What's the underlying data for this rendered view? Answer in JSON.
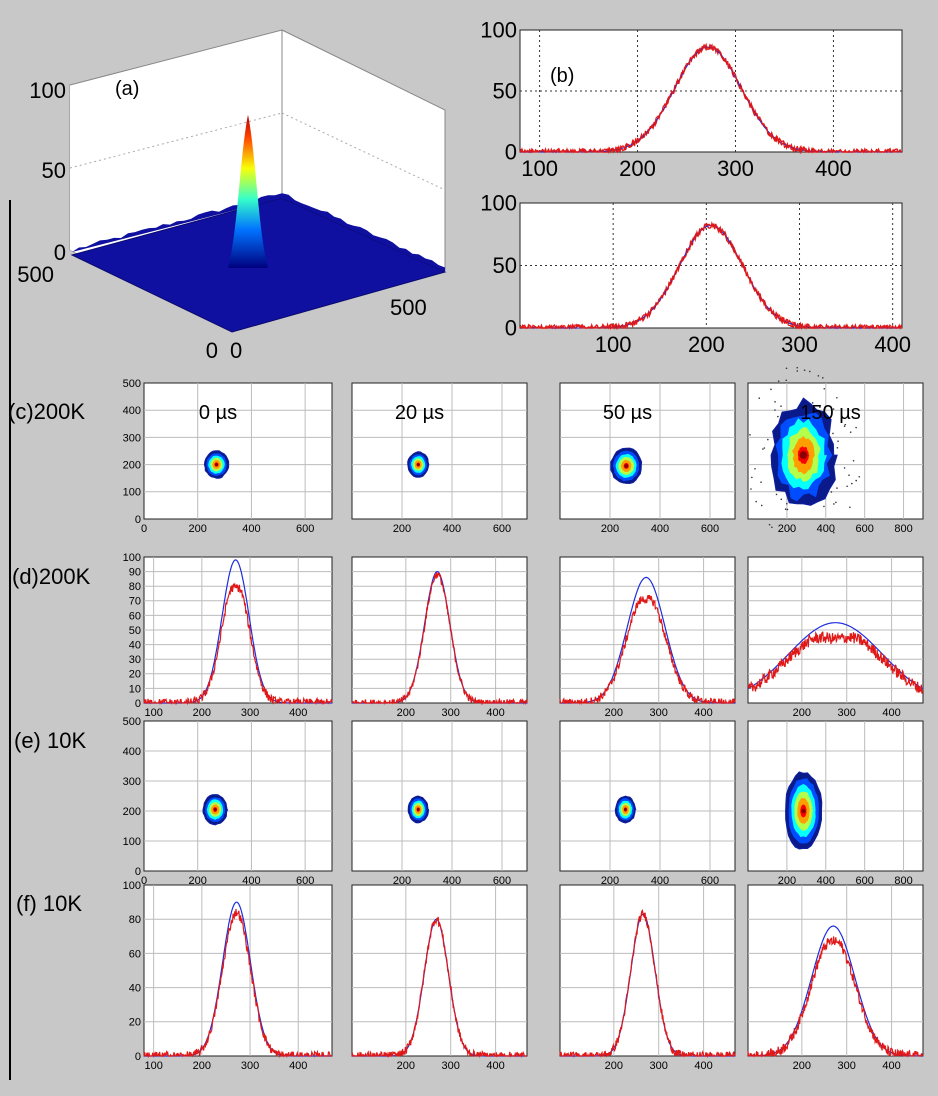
{
  "figure": {
    "row_labels": {
      "c": "(c)200K",
      "d": "(d)200K",
      "e": "(e) 10K",
      "f": "(f) 10K"
    },
    "colors": {
      "background": "#c8c8c8",
      "measured": "#e01818",
      "fit": "#1e2ee0",
      "grid": "#bcbcbc",
      "surface": "#1010a0"
    }
  },
  "chart_data": [
    {
      "id": "a",
      "type": "surface3d",
      "panel_label": "(a)",
      "zticks": [
        "100",
        "50",
        "0"
      ],
      "xticks": [
        "0",
        "500"
      ],
      "yticks": [
        "500",
        "0"
      ],
      "peak": 82
    },
    {
      "id": "b1",
      "type": "line",
      "panel_label": "(b)",
      "xlim": [
        80,
        470
      ],
      "ylim": [
        0,
        100
      ],
      "xticks": [
        100,
        200,
        300,
        400
      ],
      "yticks": [
        0,
        50,
        100
      ],
      "series": [
        {
          "role": "measured",
          "center": 272,
          "sigma": 34,
          "amp": 86,
          "noise": 2.5
        },
        {
          "role": "fit",
          "center": 272,
          "sigma": 34,
          "amp": 86
        }
      ]
    },
    {
      "id": "b2",
      "type": "line",
      "panel_label": "",
      "xlim": [
        0,
        410
      ],
      "ylim": [
        0,
        100
      ],
      "xticks": [
        100,
        200,
        300,
        400
      ],
      "yticks": [
        0,
        50,
        100
      ],
      "series": [
        {
          "role": "measured",
          "center": 205,
          "sigma": 34,
          "amp": 82,
          "noise": 2.5
        },
        {
          "role": "fit",
          "center": 205,
          "sigma": 34,
          "amp": 82
        }
      ]
    },
    {
      "id": "c",
      "type": "heatmap_row",
      "ylim": [
        0,
        500
      ],
      "yticks": [
        0,
        100,
        200,
        300,
        400,
        500
      ],
      "panels": [
        {
          "time": "0 µs",
          "xlim": [
            0,
            700
          ],
          "xticks": [
            0,
            200,
            400,
            600
          ],
          "cx": 270,
          "cy": 200,
          "rx": 45,
          "ry": 50
        },
        {
          "time": "20 µs",
          "xlim": [
            0,
            700
          ],
          "xticks": [
            200,
            400,
            600
          ],
          "cx": 265,
          "cy": 200,
          "rx": 42,
          "ry": 46
        },
        {
          "time": "50 µs",
          "xlim": [
            0,
            700
          ],
          "xticks": [
            200,
            400,
            600
          ],
          "cx": 265,
          "cy": 195,
          "rx": 62,
          "ry": 66
        },
        {
          "time": "150 µs",
          "xlim": [
            0,
            900
          ],
          "xticks": [
            200,
            400,
            600,
            800
          ],
          "cx": 285,
          "cy": 235,
          "rx": 165,
          "ry": 190
        }
      ]
    },
    {
      "id": "d",
      "type": "line_row",
      "ylim": [
        0,
        100
      ],
      "yticks": [
        0,
        10,
        20,
        30,
        40,
        50,
        60,
        70,
        80,
        90,
        100
      ],
      "panels": [
        {
          "xlim": [
            80,
            470
          ],
          "xticks": [
            100,
            200,
            300,
            400
          ],
          "fit": {
            "center": 270,
            "sigma": 28,
            "amp": 98
          },
          "measured": {
            "center": 270,
            "sigma": 28,
            "amp": 85,
            "dip": 6,
            "noise": 3
          }
        },
        {
          "xlim": [
            80,
            470
          ],
          "xticks": [
            200,
            300,
            400
          ],
          "fit": {
            "center": 270,
            "sigma": 28,
            "amp": 90
          },
          "measured": {
            "center": 270,
            "sigma": 28,
            "amp": 88,
            "dip": 0,
            "noise": 2.5
          }
        },
        {
          "xlim": [
            80,
            470
          ],
          "xticks": [
            200,
            300,
            400
          ],
          "fit": {
            "center": 272,
            "sigma": 42,
            "amp": 86
          },
          "measured": {
            "center": 272,
            "sigma": 42,
            "amp": 76,
            "dip": 5,
            "noise": 3
          }
        },
        {
          "xlim": [
            80,
            470
          ],
          "xticks": [
            200,
            300,
            400
          ],
          "fit": {
            "center": 275,
            "sigma": 105,
            "amp": 55
          },
          "measured": {
            "center": 275,
            "sigma": 105,
            "amp": 50,
            "dip": 6,
            "noise": 4
          }
        }
      ]
    },
    {
      "id": "e",
      "type": "heatmap_row",
      "ylim": [
        0,
        500
      ],
      "yticks": [
        0,
        100,
        200,
        300,
        400,
        500
      ],
      "panels": [
        {
          "time": "",
          "xlim": [
            0,
            700
          ],
          "xticks": [
            0,
            200,
            400,
            600
          ],
          "cx": 265,
          "cy": 205,
          "rx": 45,
          "ry": 50
        },
        {
          "time": "",
          "xlim": [
            0,
            700
          ],
          "xticks": [
            200,
            400,
            600
          ],
          "cx": 265,
          "cy": 205,
          "rx": 40,
          "ry": 44
        },
        {
          "time": "",
          "xlim": [
            0,
            700
          ],
          "xticks": [
            200,
            400,
            600
          ],
          "cx": 262,
          "cy": 205,
          "rx": 40,
          "ry": 44
        },
        {
          "time": "",
          "xlim": [
            0,
            900
          ],
          "xticks": [
            200,
            400,
            600,
            800
          ],
          "cx": 285,
          "cy": 200,
          "rx": 95,
          "ry": 130
        }
      ]
    },
    {
      "id": "f",
      "type": "line_row",
      "ylim": [
        0,
        100
      ],
      "yticks": [
        0,
        20,
        40,
        60,
        80,
        100
      ],
      "panels": [
        {
          "xlim": [
            80,
            470
          ],
          "xticks": [
            100,
            200,
            300,
            400
          ],
          "fit": {
            "center": 272,
            "sigma": 29,
            "amp": 90
          },
          "measured": {
            "center": 272,
            "sigma": 29,
            "amp": 84,
            "dip": 0,
            "noise": 2.5
          }
        },
        {
          "xlim": [
            80,
            470
          ],
          "xticks": [
            200,
            300,
            400
          ],
          "fit": {
            "center": 268,
            "sigma": 27,
            "amp": 80
          },
          "measured": {
            "center": 268,
            "sigma": 27,
            "amp": 80,
            "dip": 0,
            "noise": 2.5
          }
        },
        {
          "xlim": [
            80,
            470
          ],
          "xticks": [
            200,
            300,
            400
          ],
          "fit": {
            "center": 265,
            "sigma": 27,
            "amp": 83
          },
          "measured": {
            "center": 265,
            "sigma": 27,
            "amp": 83,
            "dip": 0,
            "noise": 2.5
          }
        },
        {
          "xlim": [
            80,
            470
          ],
          "xticks": [
            200,
            300,
            400
          ],
          "fit": {
            "center": 270,
            "sigma": 48,
            "amp": 76
          },
          "measured": {
            "center": 270,
            "sigma": 48,
            "amp": 70,
            "dip": 3,
            "noise": 3
          }
        }
      ]
    }
  ]
}
